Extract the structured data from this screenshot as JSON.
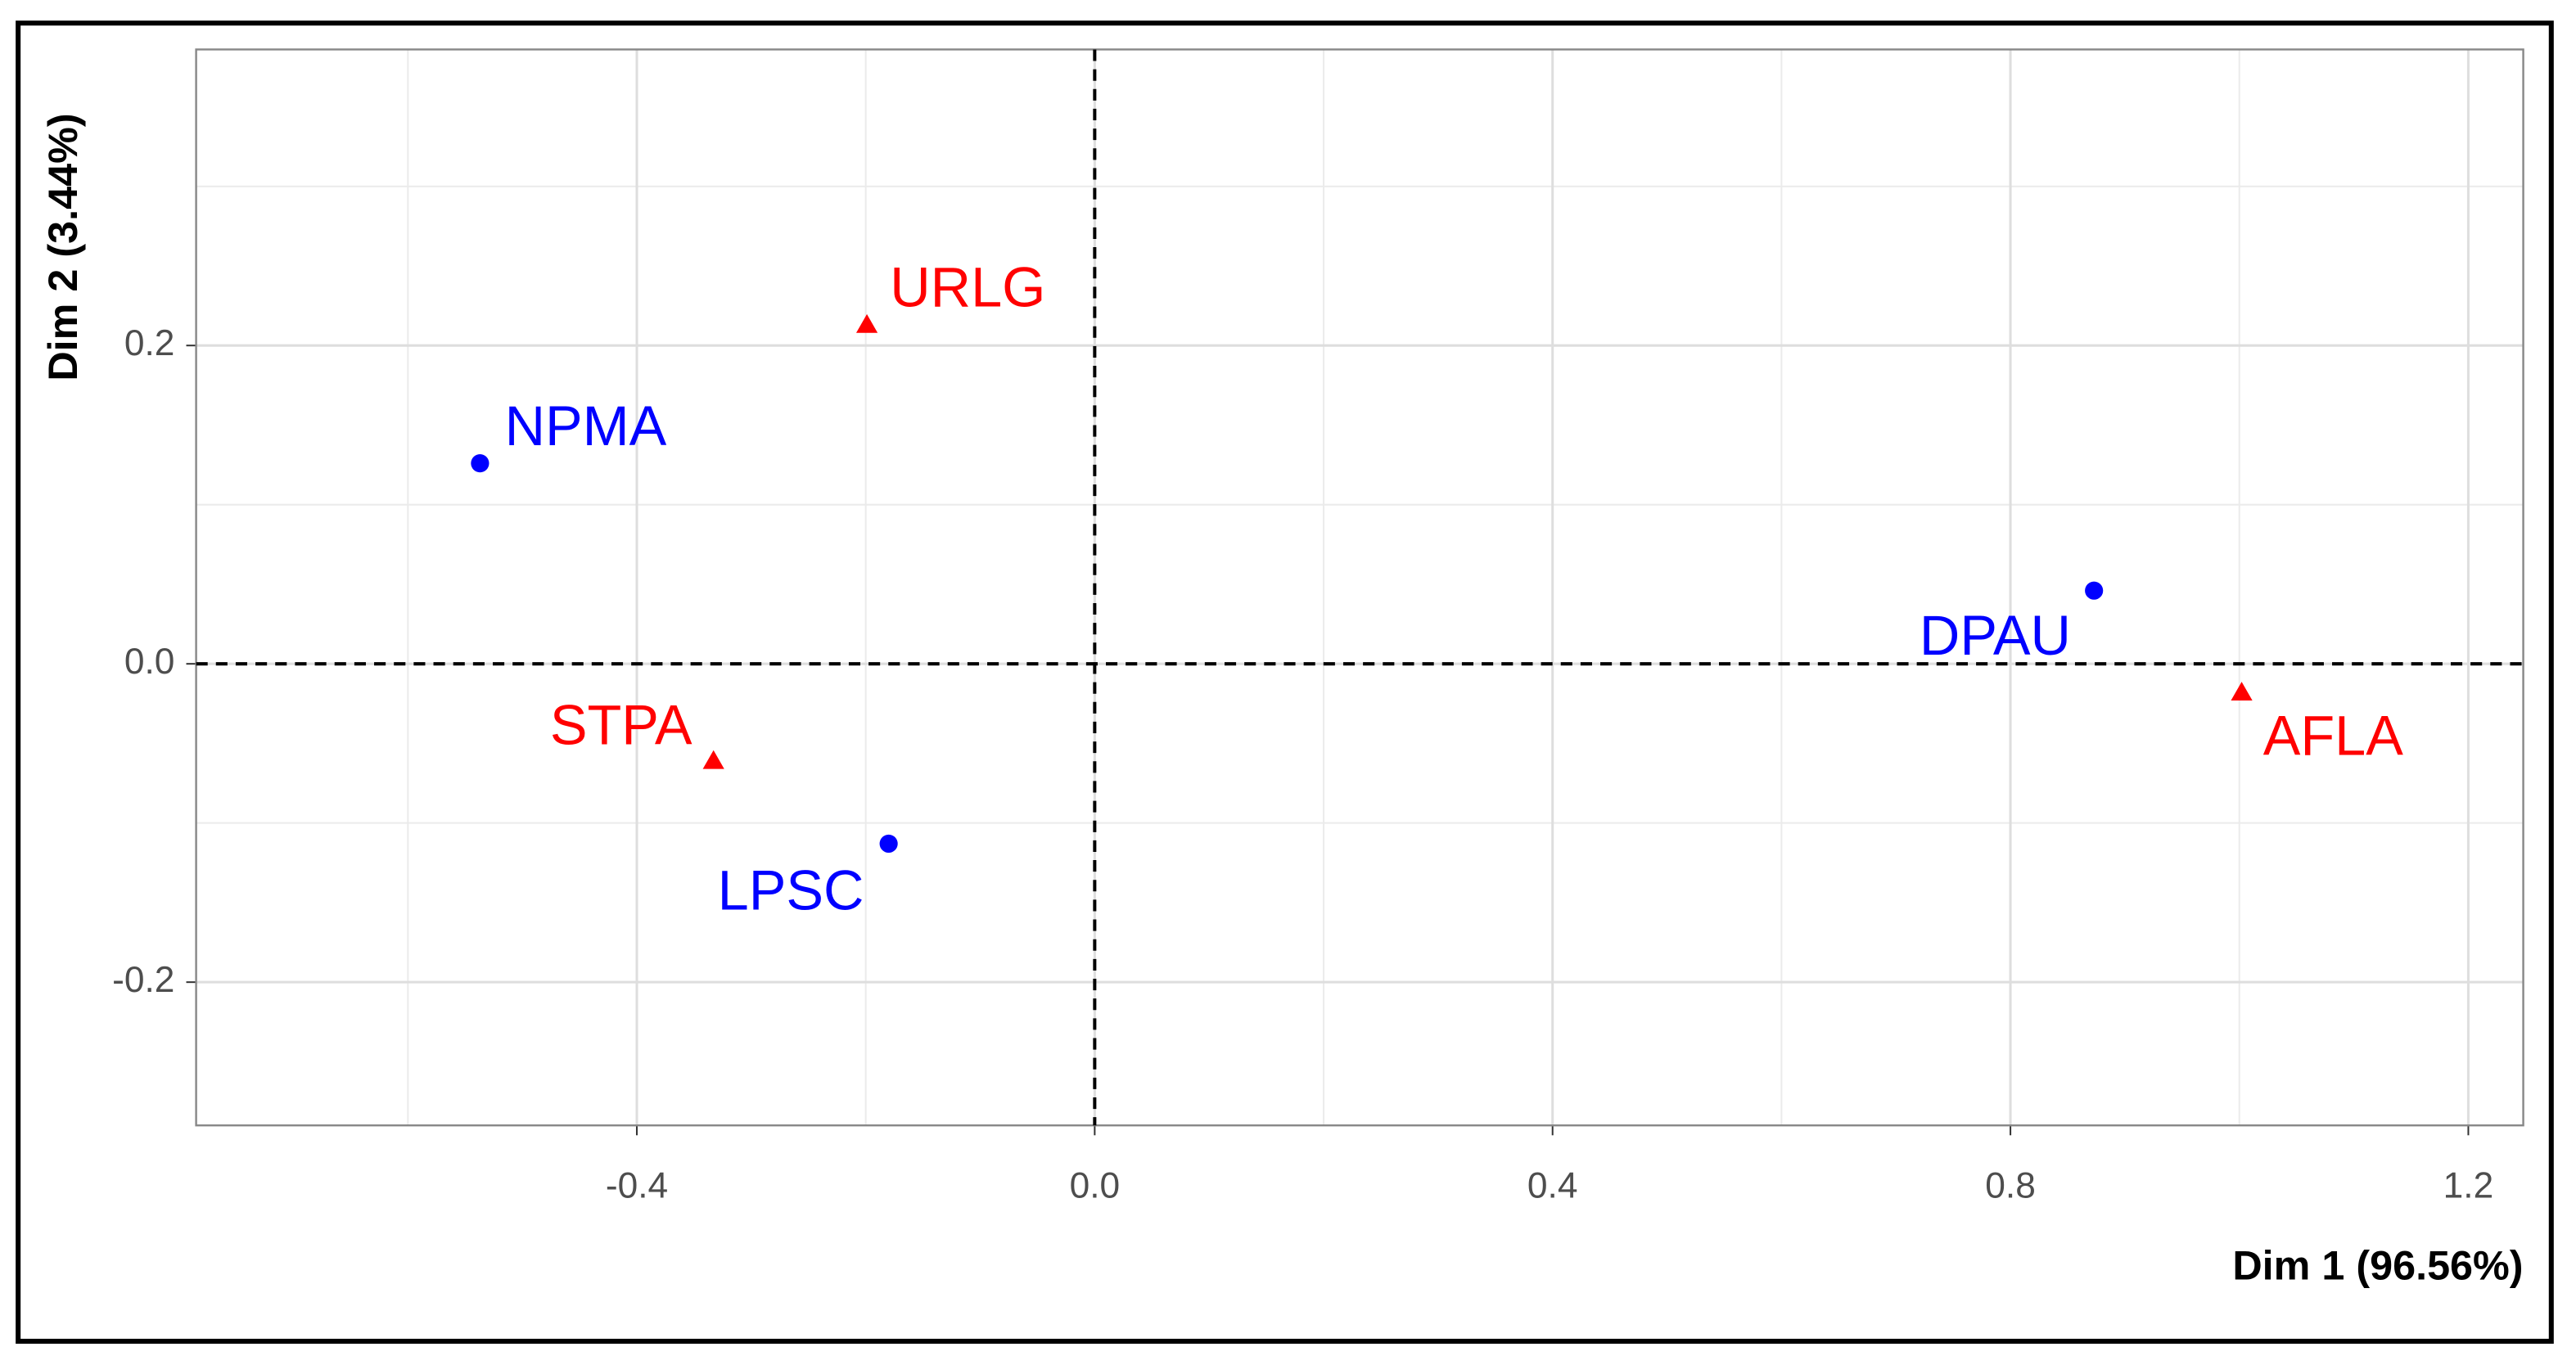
{
  "chart_data": {
    "type": "scatter",
    "x_label": "Dim 1 (96.56%)",
    "y_label": "Dim 2 (3.44%)",
    "xlim": [
      -0.785,
      1.248
    ],
    "ylim": [
      -0.29,
      0.386
    ],
    "xticks": [
      -0.4,
      {
        "value": 0,
        "label": "0.0"
      },
      0.4,
      0.8,
      1.2
    ],
    "yticks": [
      -0.2,
      {
        "value": 0,
        "label": "0.0"
      },
      0.2
    ],
    "xminor": [
      -0.6,
      -0.2,
      0.2,
      0.6,
      1.0
    ],
    "yminor": [
      -0.1,
      0.1,
      0.3
    ],
    "grid": true,
    "zero_lines": true,
    "series": [
      {
        "color": "#0000ff",
        "marker": "circle",
        "labels": [
          "NPMA",
          "LPSC",
          "DPAU"
        ],
        "x": [
          -0.537,
          -0.18,
          0.873
        ],
        "values": [
          0.126,
          -0.113,
          0.046
        ]
      },
      {
        "color": "#ff0000",
        "marker": "triangle",
        "labels": [
          "URLG",
          "STPA",
          "AFLA"
        ],
        "x": [
          -0.199,
          -0.333,
          1.002
        ],
        "values": [
          0.213,
          -0.061,
          -0.018
        ]
      }
    ]
  }
}
